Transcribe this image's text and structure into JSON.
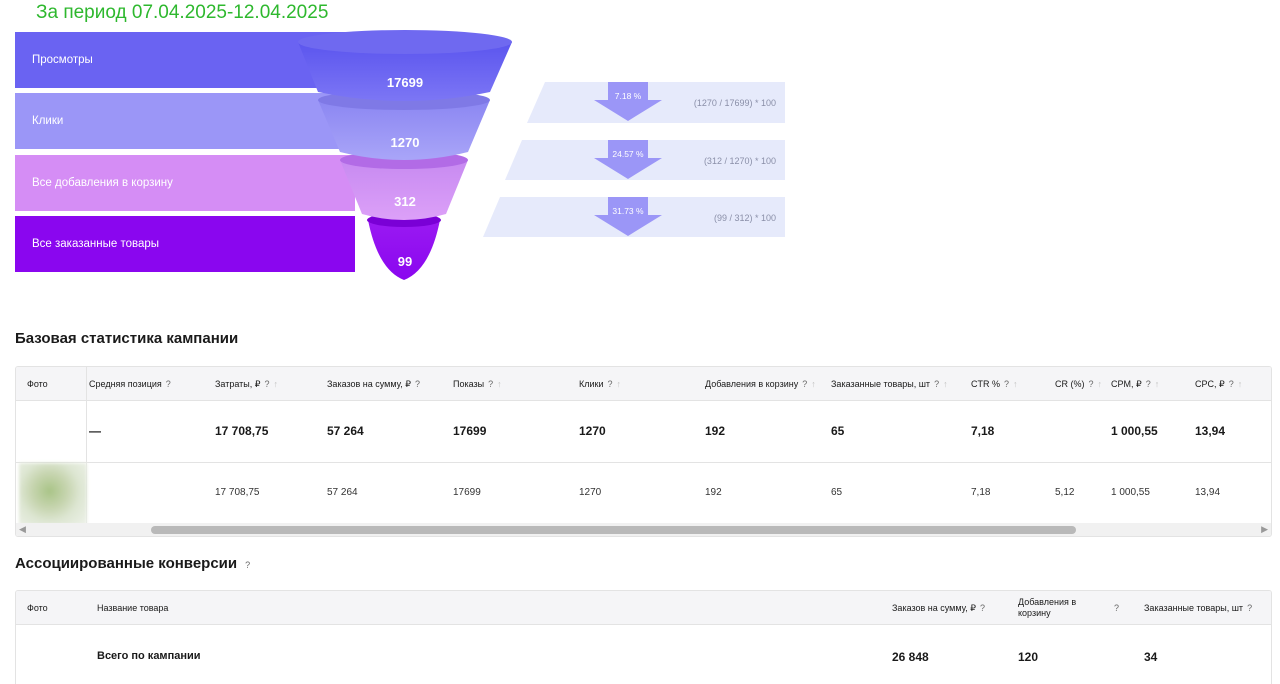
{
  "period_label": "За период 07.04.2025-12.04.2025",
  "funnel": {
    "stages": [
      {
        "label": "Просмотры",
        "value": "17699",
        "color": "#6a63f2"
      },
      {
        "label": "Клики",
        "value": "1270",
        "color": "#9b96f7"
      },
      {
        "label": "Все добавления в корзину",
        "value": "312",
        "color": "#d58df5"
      },
      {
        "label": "Все заказанные товары",
        "value": "99",
        "color": "#8a06ef"
      }
    ],
    "conversions": [
      {
        "percent": "7.18 %",
        "formula": "(1270 / 17699) * 100"
      },
      {
        "percent": "24.57 %",
        "formula": "(312 / 1270) * 100"
      },
      {
        "percent": "31.73 %",
        "formula": "(99 / 312) * 100"
      }
    ]
  },
  "base_stats": {
    "title": "Базовая статистика кампании",
    "columns": [
      "Фото",
      "Средняя позиция",
      "Затраты, ₽",
      "Заказов на сумму, ₽",
      "Показы",
      "Клики",
      "Добавления в корзину",
      "Заказанные товары, шт",
      "CTR %",
      "CR (%)",
      "CPM, ₽",
      "CPC, ₽"
    ],
    "total_row": [
      "",
      "—",
      "17 708,75",
      "57 264",
      "17699",
      "1270",
      "192",
      "65",
      "7,18",
      "",
      "1 000,55",
      "13,94"
    ],
    "item_row": [
      "",
      "",
      "17 708,75",
      "57 264",
      "17699",
      "1270",
      "192",
      "65",
      "7,18",
      "5,12",
      "1 000,55",
      "13,94"
    ],
    "help": "?",
    "sort": "↑",
    "scroll_left": "◀",
    "scroll_right": "▶"
  },
  "assoc": {
    "title": "Ассоциированные конверсии",
    "help": "?",
    "columns": [
      "Фото",
      "Название товара",
      "Заказов на сумму, ₽",
      "Добавления в корзину",
      "Заказанные товары, шт"
    ],
    "total_row": [
      "",
      "Всего по кампании",
      "26 848",
      "120",
      "34"
    ]
  }
}
